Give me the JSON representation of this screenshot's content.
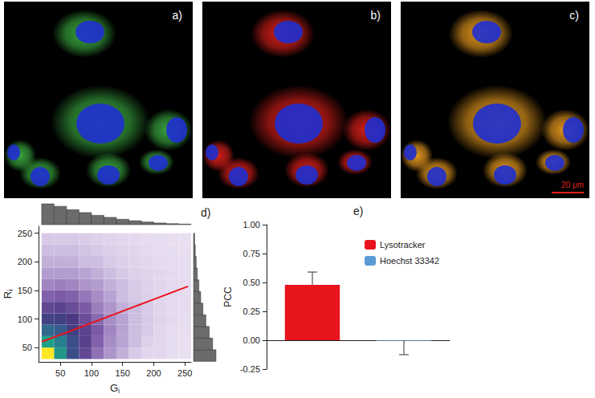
{
  "images": [
    {
      "label": "a)",
      "color": "#3cb043"
    },
    {
      "label": "b)",
      "color": "#e0201a"
    },
    {
      "label": "c)",
      "color": "#f0a020"
    }
  ],
  "scale_bar": "20 μm",
  "chart_data": [
    {
      "type": "density",
      "label": "d)",
      "x_label": "Gi",
      "y_label": "Ri",
      "xlim": [
        15,
        260
      ],
      "ylim": [
        25,
        262
      ],
      "xticks": [
        50,
        100,
        150,
        200,
        250
      ],
      "yticks": [
        50,
        100,
        150,
        200,
        250
      ],
      "grid": false,
      "x_edges": [
        20,
        40,
        60,
        80,
        100,
        120,
        140,
        160,
        180,
        200,
        220,
        240,
        260
      ],
      "y_edges": [
        30,
        50,
        70,
        90,
        110,
        130,
        150,
        170,
        190,
        210,
        230,
        250
      ],
      "density": [
        [
          100,
          70,
          40,
          22,
          12,
          7,
          4,
          2,
          1,
          1,
          0.5,
          0.3
        ],
        [
          75,
          60,
          40,
          25,
          14,
          8,
          5,
          3,
          1.5,
          1,
          0.5,
          0.3
        ],
        [
          50,
          45,
          35,
          24,
          15,
          9,
          5,
          3,
          2,
          1,
          0.6,
          0.4
        ],
        [
          35,
          35,
          28,
          20,
          13,
          8,
          5,
          3,
          2,
          1.2,
          0.8,
          0.5
        ],
        [
          22,
          24,
          20,
          15,
          10,
          7,
          4,
          3,
          2,
          1.2,
          0.8,
          0.6
        ],
        [
          14,
          15,
          14,
          11,
          8,
          5,
          3,
          2,
          1.5,
          1,
          0.8,
          0.6
        ],
        [
          9,
          10,
          9,
          7,
          6,
          4,
          3,
          2,
          1.4,
          1,
          0.8,
          0.6
        ],
        [
          6,
          6,
          6,
          5,
          4,
          3,
          2,
          1.5,
          1.2,
          0.9,
          0.7,
          0.5
        ],
        [
          4,
          4,
          4,
          3,
          3,
          2,
          1.6,
          1.2,
          1,
          0.8,
          0.6,
          0.5
        ],
        [
          3,
          3,
          3,
          2.5,
          2,
          1.6,
          1.2,
          1,
          0.8,
          0.6,
          0.5,
          0.4
        ],
        [
          2,
          2,
          2,
          1.8,
          1.5,
          1.2,
          1,
          0.8,
          0.6,
          0.5,
          0.4,
          0.3
        ]
      ],
      "color_range": [
        0,
        100
      ],
      "fit": {
        "x": [
          20,
          255
        ],
        "y": [
          60,
          157
        ],
        "color": "#e8141c"
      },
      "x_hist": {
        "bins": [
          20,
          40,
          60,
          80,
          100,
          120,
          140,
          160,
          180,
          200,
          220,
          240,
          260
        ],
        "counts": [
          100,
          88,
          72,
          58,
          45,
          35,
          26,
          19,
          13,
          8,
          5,
          3
        ]
      },
      "y_hist": {
        "bins": [
          30,
          50,
          70,
          90,
          110,
          130,
          150,
          170,
          190,
          210,
          230,
          250
        ],
        "counts": [
          100,
          85,
          70,
          55,
          42,
          32,
          24,
          17,
          12,
          8,
          5
        ]
      }
    },
    {
      "type": "bar",
      "label": "e)",
      "y_label": "PCC",
      "categories": [
        "Lysotracker",
        "Hoechst 33342"
      ],
      "values": [
        0.48,
        -0.005
      ],
      "errors": [
        0.11,
        0.12
      ],
      "colors": [
        "#e8141c",
        "#5b9bd5"
      ],
      "ylim": [
        -0.25,
        1
      ],
      "yticks": [
        {
          "value": -0.25,
          "label": "-0.25"
        },
        {
          "value": 0,
          "label": "0.00"
        },
        {
          "value": 0.25,
          "label": "0.25"
        },
        {
          "value": 0.5,
          "label": "0.50"
        },
        {
          "value": 0.75,
          "label": "0.75"
        },
        {
          "value": 1,
          "label": "1.00"
        }
      ],
      "legend": "top-right",
      "tick_labels": "y",
      "grid": false
    }
  ]
}
